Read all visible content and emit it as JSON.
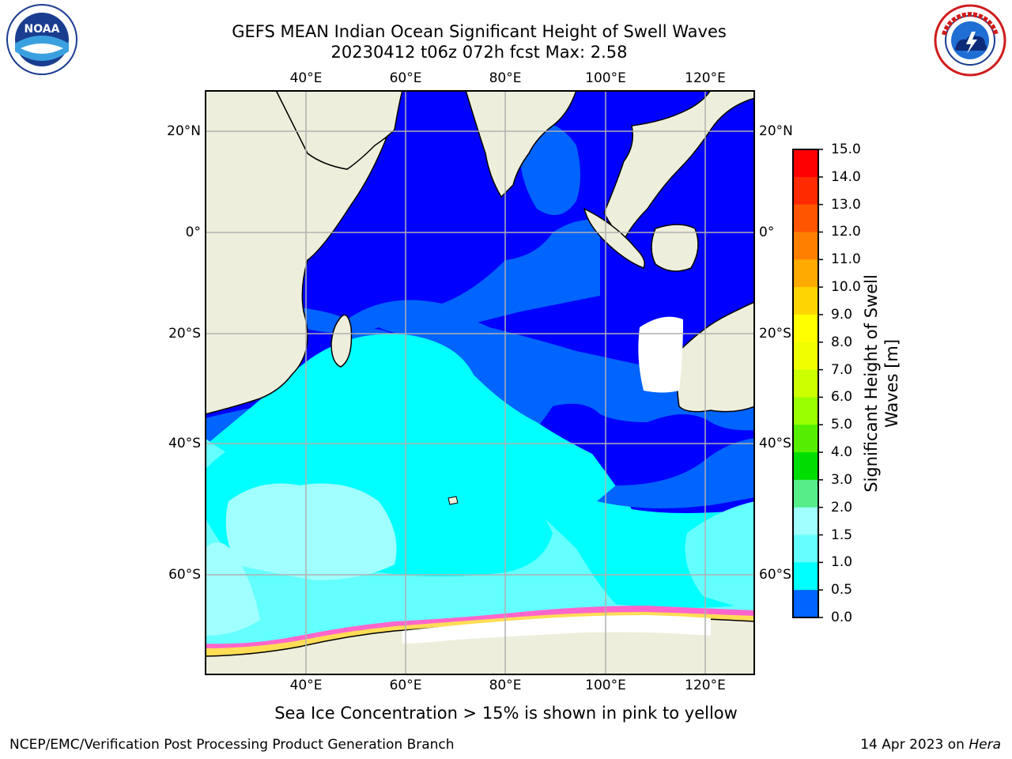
{
  "header": {
    "title_line1": "GEFS MEAN Indian Ocean Significant Height of Swell Waves",
    "title_line2": "20230412 t06z 072h fcst   Max: 2.58"
  },
  "logos": {
    "left_text": "NOAA",
    "left_ring_text": "NATIONAL OCEANIC AND ATMOSPHERIC ADMINISTRATION · U.S. DEPARTMENT OF COMMERCE",
    "right_ring_text": "NATIONAL WEATHER SERVICE"
  },
  "map": {
    "lon_ticks_top": [
      "40°E",
      "60°E",
      "80°E",
      "100°E",
      "120°E"
    ],
    "lon_ticks_bottom": [
      "40°E",
      "60°E",
      "80°E",
      "100°E",
      "120°E"
    ],
    "lat_ticks_left": [
      "20°N",
      "0°",
      "20°S",
      "40°S",
      "60°S"
    ],
    "lat_ticks_right": [
      "20°N",
      "0°",
      "20°S",
      "40°S",
      "60°S"
    ],
    "colors": {
      "land": "#eeeedc",
      "ocean_0_05": "#0000ff",
      "ocean_05_1": "#0064ff",
      "ocean_1_15": "#00ffff",
      "ocean_15_2": "#64ffff",
      "ocean_2_3": "#a0ffff",
      "ice_edge_pink": "#ff66cc",
      "ice_edge_yellow": "#ffdd55",
      "grid": "#b0b0b0"
    }
  },
  "colorbar": {
    "label_line1": "Significant Height of Swell",
    "label_line2": "Waves [m]",
    "ticks": [
      "15.0",
      "14.0",
      "13.0",
      "12.0",
      "11.0",
      "10.0",
      "9.0",
      "8.0",
      "7.0",
      "6.0",
      "5.0",
      "4.0",
      "3.0",
      "2.0",
      "1.5",
      "1.0",
      "0.5",
      "0.0"
    ],
    "colors_top_to_bottom": [
      "#ff0000",
      "#ff2a00",
      "#ff5500",
      "#ff8000",
      "#ffaa00",
      "#ffd500",
      "#ffff00",
      "#eeff00",
      "#ccff00",
      "#99ff00",
      "#55ee00",
      "#00dd00",
      "#55ee88",
      "#a0ffff",
      "#64ffff",
      "#00ffff",
      "#0064ff",
      "#0000ff"
    ]
  },
  "notes": {
    "sea_ice": "Sea Ice Concentration > 15% is shown in pink to yellow"
  },
  "footer": {
    "left": "NCEP/EMC/Verification Post Processing Product Generation Branch",
    "right_prefix": "14 Apr 2023 on ",
    "right_italic": "Hera"
  }
}
